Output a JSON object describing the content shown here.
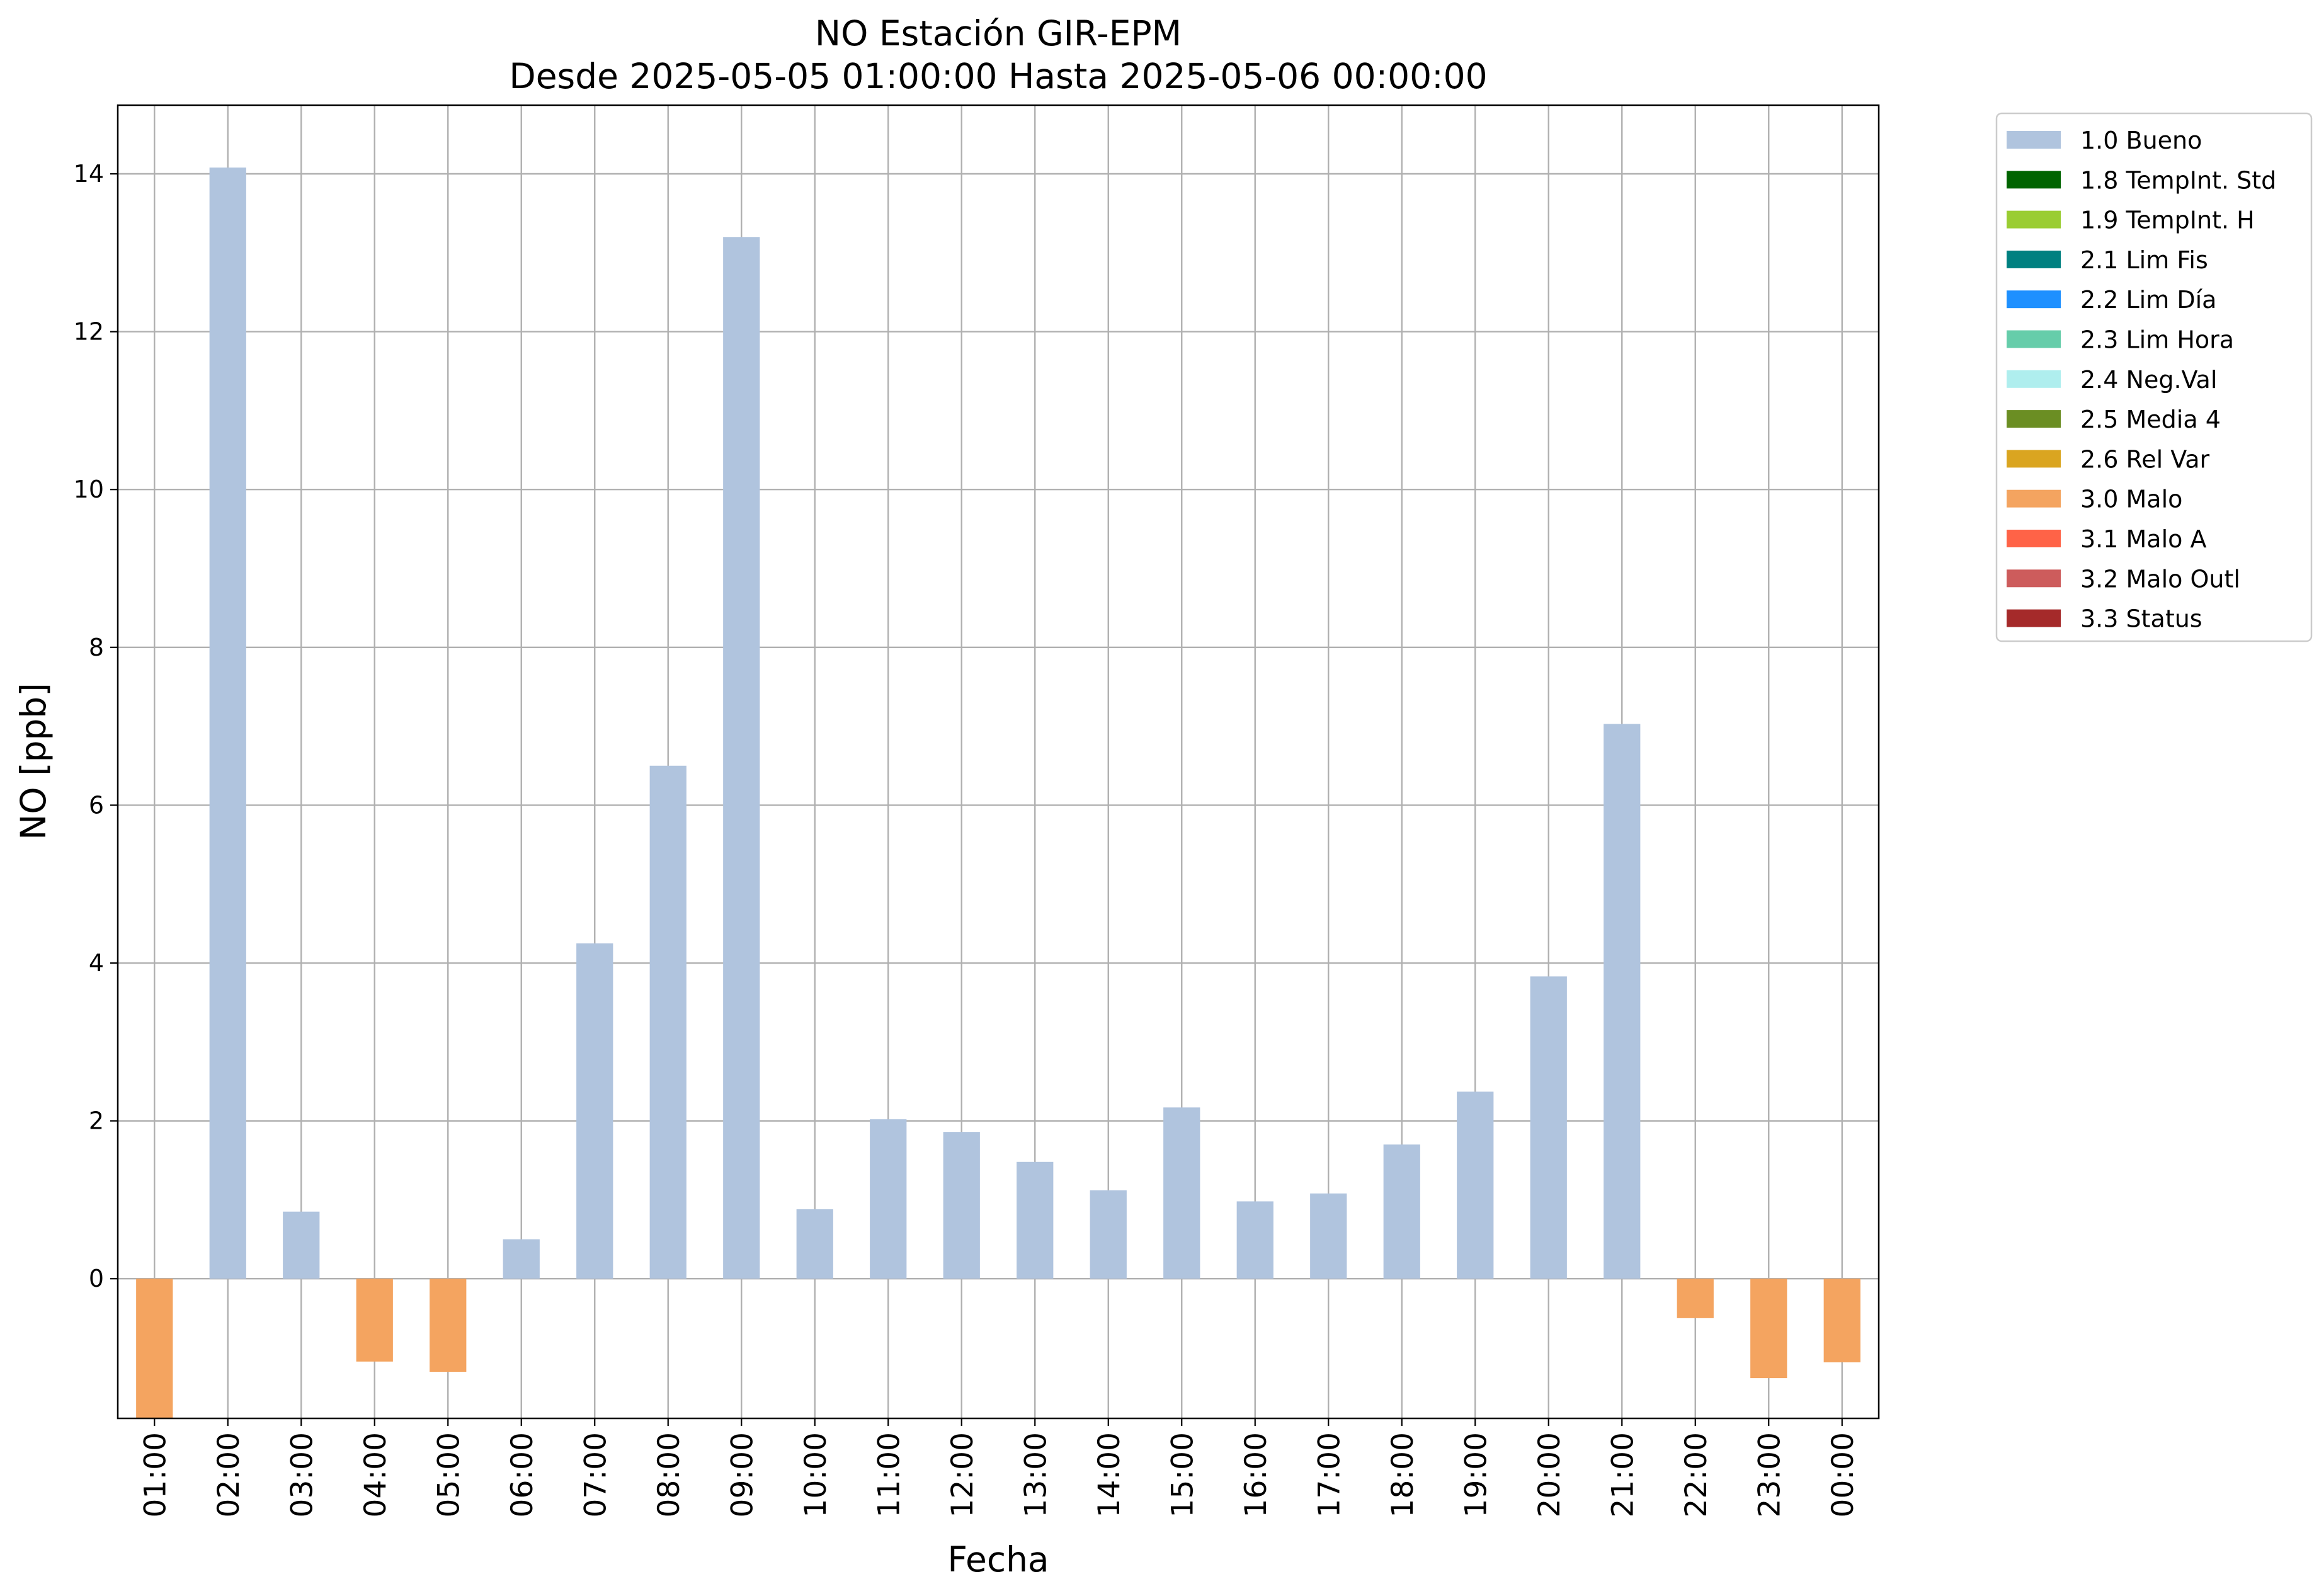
{
  "chart_data": {
    "type": "bar",
    "title": "NO Estación GIR-EPM",
    "subtitle": "Desde 2025-05-05 01:00:00 Hasta 2025-05-06 00:00:00",
    "xlabel": "Fecha",
    "ylabel": "NO [ppb]",
    "ylim": [
      -1.77,
      14.87
    ],
    "yticks": [
      0,
      2,
      4,
      6,
      8,
      10,
      12,
      14
    ],
    "grid": true,
    "legend_position": "outside-top-right",
    "categories": [
      "01:00",
      "02:00",
      "03:00",
      "04:00",
      "05:00",
      "06:00",
      "07:00",
      "08:00",
      "09:00",
      "10:00",
      "11:00",
      "12:00",
      "13:00",
      "14:00",
      "15:00",
      "16:00",
      "17:00",
      "18:00",
      "19:00",
      "20:00",
      "21:00",
      "22:00",
      "23:00",
      "00:00"
    ],
    "values": [
      -1.77,
      14.08,
      0.85,
      -1.05,
      -1.18,
      0.5,
      4.25,
      6.5,
      13.2,
      0.88,
      2.02,
      1.86,
      1.48,
      1.12,
      2.17,
      0.98,
      1.08,
      1.7,
      2.37,
      3.83,
      7.03,
      -0.5,
      -1.26,
      -1.06
    ],
    "flags": [
      "3.0 Malo",
      "1.0 Bueno",
      "1.0 Bueno",
      "3.0 Malo",
      "3.0 Malo",
      "1.0 Bueno",
      "1.0 Bueno",
      "1.0 Bueno",
      "1.0 Bueno",
      "1.0 Bueno",
      "1.0 Bueno",
      "1.0 Bueno",
      "1.0 Bueno",
      "1.0 Bueno",
      "1.0 Bueno",
      "1.0 Bueno",
      "1.0 Bueno",
      "1.0 Bueno",
      "1.0 Bueno",
      "1.0 Bueno",
      "1.0 Bueno",
      "3.0 Malo",
      "3.0 Malo",
      "3.0 Malo"
    ],
    "legend": [
      {
        "label": "1.0 Bueno",
        "color": "#b0c4de"
      },
      {
        "label": "1.8 TempInt. Std",
        "color": "#006400"
      },
      {
        "label": "1.9 TempInt. H",
        "color": "#9acd32"
      },
      {
        "label": "2.1 Lim Fis",
        "color": "#008080"
      },
      {
        "label": "2.2 Lim Día",
        "color": "#1e90ff"
      },
      {
        "label": "2.3 Lim Hora",
        "color": "#66cdaa"
      },
      {
        "label": "2.4 Neg.Val",
        "color": "#afeeee"
      },
      {
        "label": "2.5 Media 4",
        "color": "#6b8e23"
      },
      {
        "label": "2.6 Rel Var",
        "color": "#daa520"
      },
      {
        "label": "3.0 Malo",
        "color": "#f4a460"
      },
      {
        "label": "3.1 Malo A",
        "color": "#ff6347"
      },
      {
        "label": "3.2 Malo Outl",
        "color": "#cd5c5c"
      },
      {
        "label": "3.3 Status",
        "color": "#a52a2a"
      }
    ]
  }
}
